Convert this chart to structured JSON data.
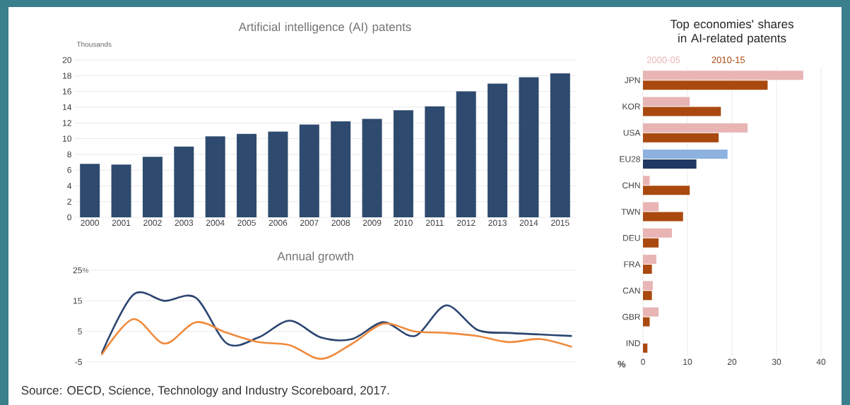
{
  "chart_data": [
    {
      "type": "bar",
      "title": "Artificial intelligence (AI) patents",
      "ylabel": "Thousands",
      "categories": [
        "2000",
        "2001",
        "2002",
        "2003",
        "2004",
        "2005",
        "2006",
        "2007",
        "2008",
        "2009",
        "2010",
        "2011",
        "2012",
        "2013",
        "2014",
        "2015"
      ],
      "values": [
        6.8,
        6.7,
        7.7,
        9.0,
        10.3,
        10.6,
        10.9,
        11.8,
        12.2,
        12.5,
        13.6,
        14.1,
        16.0,
        17.0,
        17.8,
        18.3
      ],
      "color": "#2e4a6e",
      "ylim": [
        0,
        20
      ],
      "yticks": [
        0,
        2,
        4,
        6,
        8,
        10,
        12,
        14,
        16,
        18,
        20
      ],
      "grid": "y"
    },
    {
      "type": "line",
      "title": "Annual growth",
      "ylabel": "%",
      "categories": [
        null,
        null,
        null,
        null,
        null,
        null,
        null,
        null,
        null,
        null,
        null,
        null,
        null,
        null,
        null,
        null
      ],
      "series": [
        {
          "color": "#2b4570",
          "values": [
            -2,
            17,
            15,
            16,
            1,
            3,
            8.5,
            3,
            2.5,
            8,
            3.5,
            13.5,
            5.5,
            4.5,
            4,
            3.5
          ]
        },
        {
          "color": "#f08a3c",
          "values": [
            -2.5,
            9,
            1,
            8,
            4.5,
            1.5,
            0.5,
            -4,
            1,
            7.5,
            5,
            4.5,
            3.5,
            1.5,
            2.5,
            0
          ]
        }
      ],
      "ylim": [
        -5,
        25
      ],
      "yticks": [
        -5,
        5,
        15,
        25
      ],
      "grid": "y",
      "annotations": [
        "Source: OECD, Science, Technology and Industry Scoreboard, 2017."
      ]
    },
    {
      "type": "bar",
      "orientation": "horizontal",
      "title": "Top economies' shares in AI-related patents",
      "xlabel": "%",
      "categories": [
        "JPN",
        "KOR",
        "USA",
        "EU28",
        "CHN",
        "TWN",
        "DEU",
        "FRA",
        "CAN",
        "GBR",
        "IND"
      ],
      "series": [
        {
          "name": "2000-05",
          "color": "#e8b4b4",
          "colors": [
            "#e8b4b4",
            "#e8b4b4",
            "#e8b4b4",
            "#8db2e0",
            "#e8b4b4",
            "#e8b4b4",
            "#e8b4b4",
            "#e8b4b4",
            "#e8b4b4",
            "#e8b4b4",
            "#e8b4b4"
          ],
          "values": [
            36,
            10.5,
            23.5,
            19,
            1.5,
            3.5,
            6.5,
            3,
            2.2,
            3.5,
            null
          ]
        },
        {
          "name": "2010-15",
          "color": "#a9490f",
          "colors": [
            "#a9490f",
            "#a9490f",
            "#a9490f",
            "#1f3864",
            "#a9490f",
            "#a9490f",
            "#a9490f",
            "#a9490f",
            "#a9490f",
            "#a9490f",
            "#a9490f"
          ],
          "values": [
            28,
            17.5,
            17,
            12,
            10.5,
            9,
            3.5,
            2,
            2,
            1.5,
            1
          ]
        }
      ],
      "xlim": [
        0,
        40
      ],
      "xticks": [
        0,
        10,
        20,
        30,
        40
      ],
      "grid": "x",
      "legend": "top left"
    }
  ]
}
